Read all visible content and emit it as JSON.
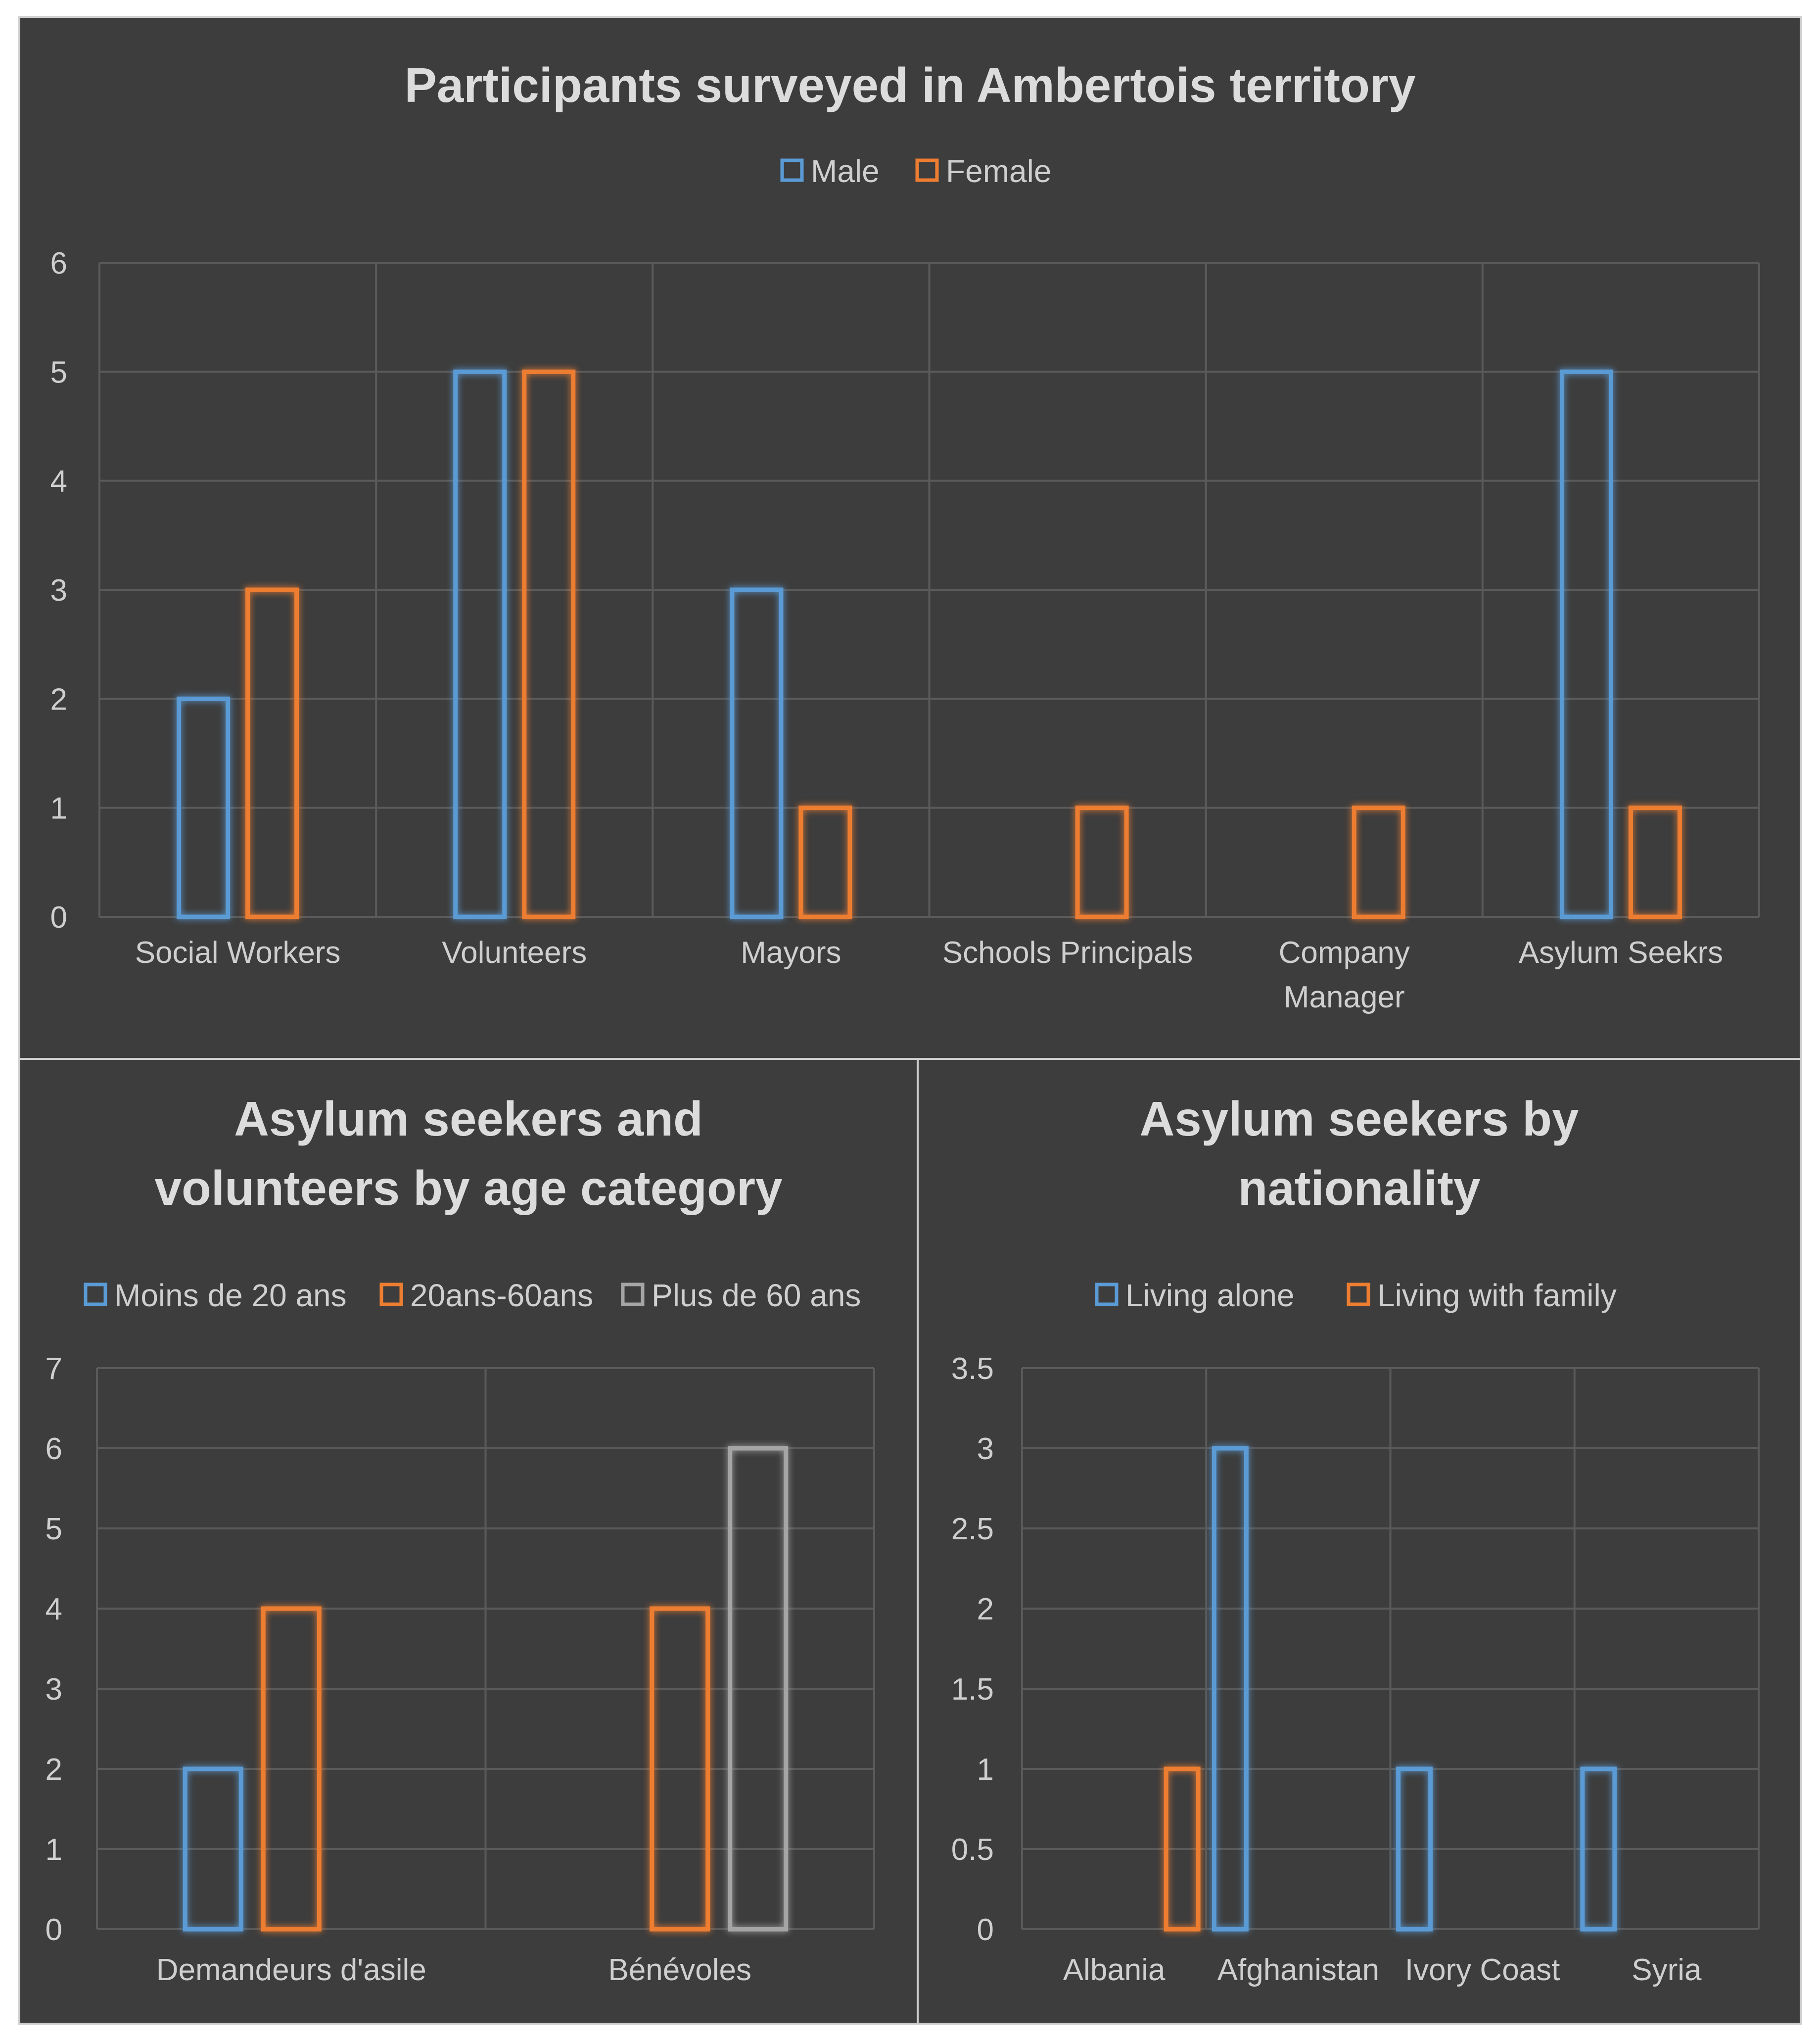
{
  "chart_data": [
    {
      "type": "bar",
      "title": "Participants surveyed in Ambertois territory",
      "categories": [
        "Social Workers",
        "Volunteers",
        "Mayors",
        "Schools Principals",
        "Company Manager",
        "Asylum Seekrs"
      ],
      "series": [
        {
          "name": "Male",
          "values": [
            2,
            5,
            3,
            0,
            0,
            5
          ]
        },
        {
          "name": "Female",
          "values": [
            3,
            5,
            1,
            1,
            1,
            1
          ]
        }
      ],
      "ylim": [
        0,
        6
      ],
      "yticks": [
        "0",
        "1",
        "2",
        "3",
        "4",
        "5",
        "6"
      ],
      "xlabel": "",
      "ylabel": "",
      "legend": "top"
    },
    {
      "type": "bar",
      "title": "Asylum seekers and volunteers by age category",
      "categories": [
        "Demandeurs d'asile",
        "Bénévoles"
      ],
      "series": [
        {
          "name": "Moins de 20 ans",
          "values": [
            2,
            0
          ]
        },
        {
          "name": "20ans-60ans",
          "values": [
            4,
            4
          ]
        },
        {
          "name": "Plus de 60 ans",
          "values": [
            0,
            6
          ]
        }
      ],
      "ylim": [
        0,
        7
      ],
      "yticks": [
        "0",
        "1",
        "2",
        "3",
        "4",
        "5",
        "6",
        "7"
      ],
      "xlabel": "",
      "ylabel": "",
      "legend": "top"
    },
    {
      "type": "bar",
      "title": "Asylum seekers by nationality",
      "categories": [
        "Albania",
        "Afghanistan",
        "Ivory Coast",
        "Syria"
      ],
      "series": [
        {
          "name": "Living alone",
          "values": [
            0,
            3,
            1,
            1
          ]
        },
        {
          "name": "Living with family",
          "values": [
            1,
            0,
            0,
            0
          ]
        }
      ],
      "ylim": [
        0,
        3.5
      ],
      "yticks": [
        "0",
        "0.5",
        "1",
        "1.5",
        "2",
        "2.5",
        "3",
        "3.5"
      ],
      "xlabel": "",
      "ylabel": "",
      "legend": "top"
    }
  ],
  "colors": {
    "blue": "#5b9bd5",
    "orange": "#ed7d31",
    "gray": "#a5a5a5",
    "grid": "#5a5a5a"
  }
}
